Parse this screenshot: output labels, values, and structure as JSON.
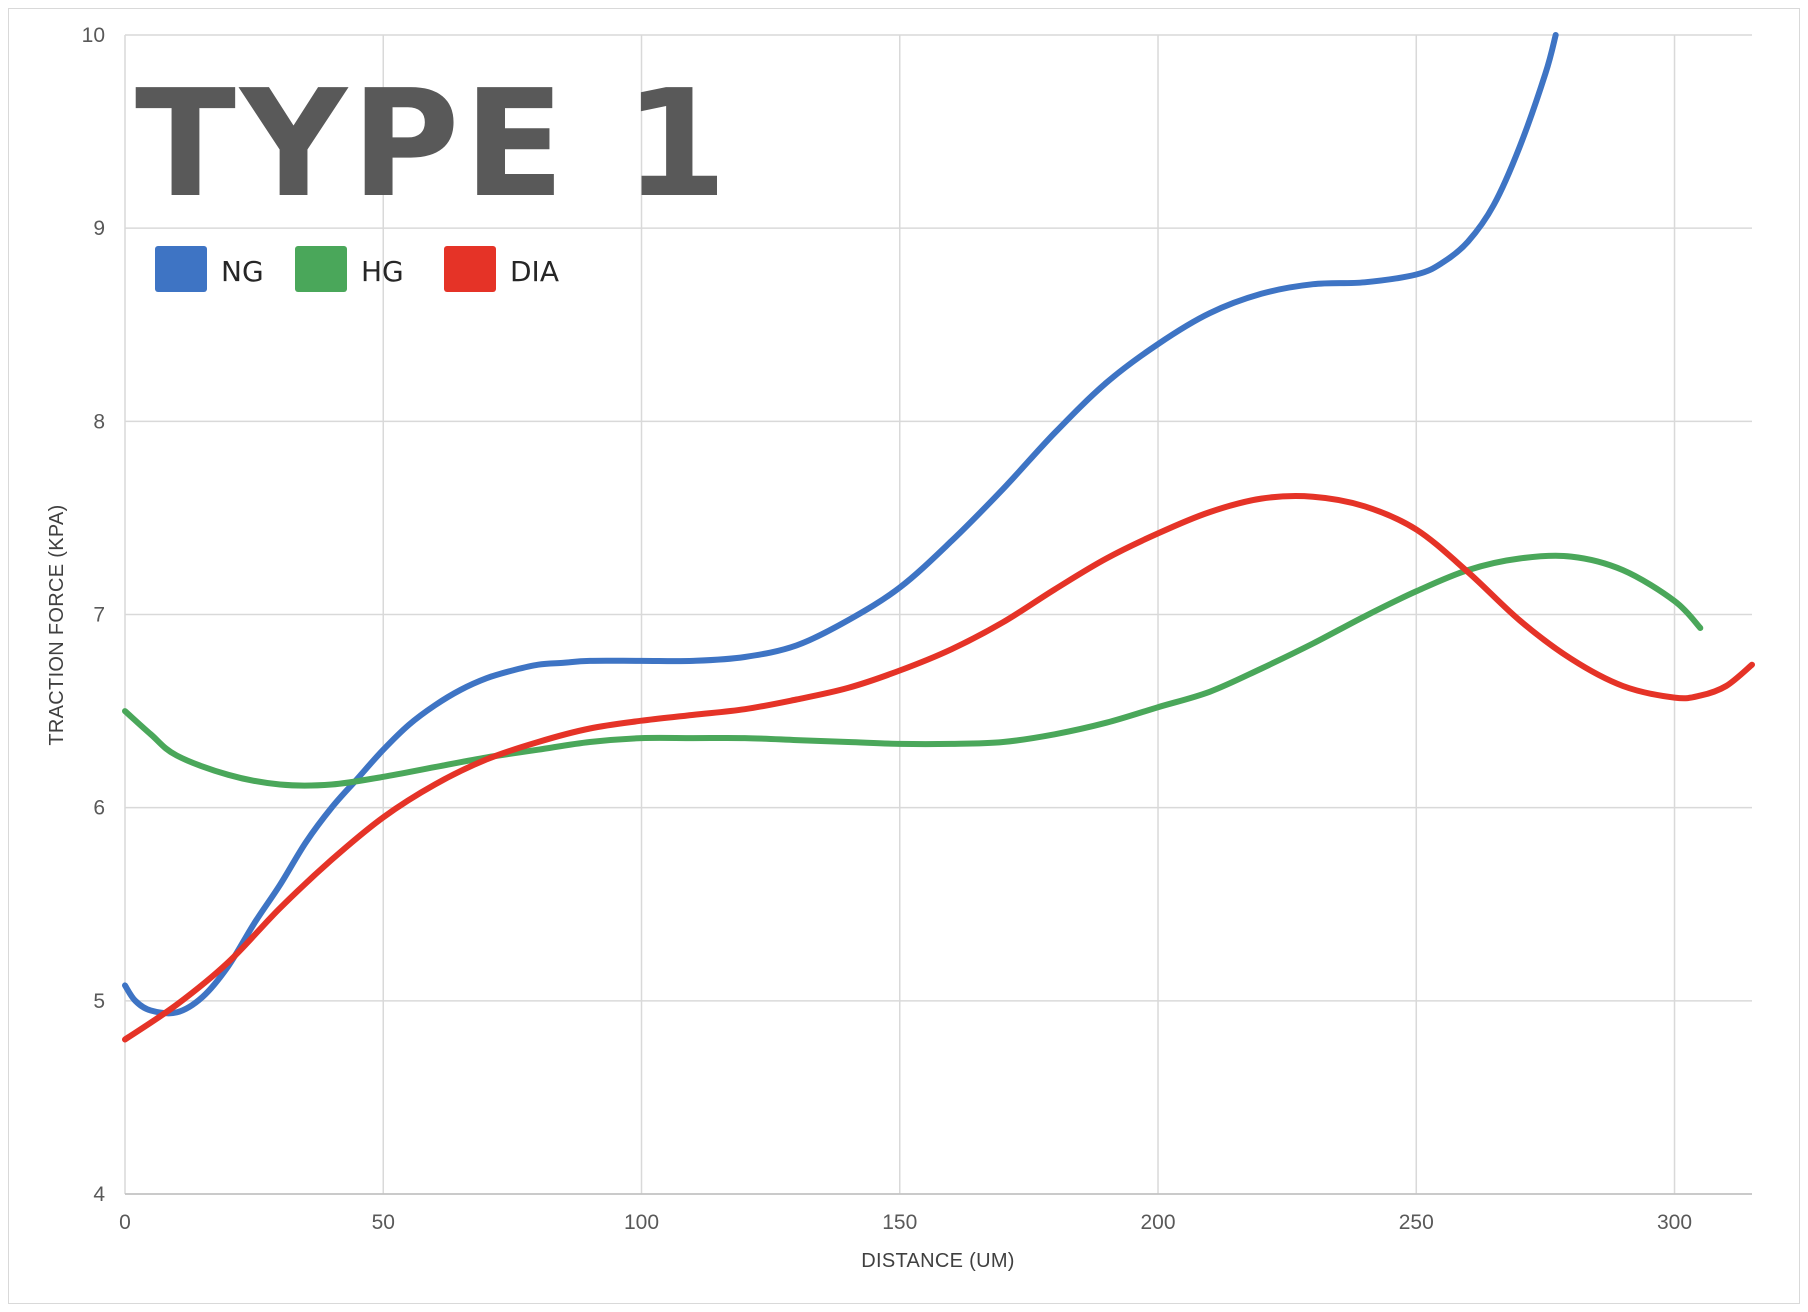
{
  "chart_data": {
    "type": "line",
    "title": "TYPE 1",
    "xlabel": "DISTANCE (UM)",
    "ylabel": "TRACTION FORCE (KPA)",
    "xlim": [
      0,
      315
    ],
    "ylim": [
      4,
      10
    ],
    "xticks": [
      0,
      50,
      100,
      150,
      200,
      250,
      300
    ],
    "yticks": [
      4,
      5,
      6,
      7,
      8,
      9,
      10
    ],
    "grid": true,
    "legend_position": "top-left",
    "series": [
      {
        "name": "NG",
        "color": "#3e74c4",
        "x": [
          0,
          2,
          5,
          10,
          15,
          20,
          25,
          30,
          35,
          40,
          45,
          50,
          55,
          60,
          65,
          70,
          75,
          80,
          85,
          90,
          100,
          110,
          120,
          130,
          140,
          150,
          160,
          170,
          180,
          190,
          200,
          210,
          220,
          230,
          240,
          250,
          255,
          260,
          265,
          270,
          275,
          277
        ],
        "y": [
          5.08,
          5.0,
          4.95,
          4.94,
          5.02,
          5.18,
          5.4,
          5.6,
          5.82,
          6.0,
          6.15,
          6.3,
          6.43,
          6.53,
          6.61,
          6.67,
          6.71,
          6.74,
          6.75,
          6.76,
          6.76,
          6.76,
          6.78,
          6.84,
          6.97,
          7.14,
          7.38,
          7.65,
          7.94,
          8.2,
          8.4,
          8.56,
          8.66,
          8.71,
          8.72,
          8.76,
          8.82,
          8.93,
          9.12,
          9.42,
          9.8,
          10.0
        ]
      },
      {
        "name": "HG",
        "color": "#4aa75a",
        "x": [
          0,
          5,
          10,
          20,
          30,
          40,
          50,
          60,
          70,
          80,
          90,
          100,
          110,
          120,
          130,
          140,
          150,
          160,
          170,
          180,
          190,
          200,
          210,
          220,
          230,
          240,
          250,
          260,
          270,
          280,
          290,
          300,
          305
        ],
        "y": [
          6.5,
          6.38,
          6.27,
          6.17,
          6.12,
          6.12,
          6.16,
          6.21,
          6.26,
          6.3,
          6.34,
          6.36,
          6.36,
          6.36,
          6.35,
          6.34,
          6.33,
          6.33,
          6.34,
          6.38,
          6.44,
          6.52,
          6.6,
          6.72,
          6.85,
          6.99,
          7.12,
          7.23,
          7.29,
          7.3,
          7.23,
          7.07,
          6.93
        ]
      },
      {
        "name": "DIA",
        "color": "#e53327",
        "x": [
          0,
          10,
          20,
          30,
          40,
          50,
          60,
          70,
          80,
          90,
          100,
          110,
          120,
          130,
          140,
          150,
          160,
          170,
          180,
          190,
          200,
          210,
          220,
          230,
          240,
          250,
          260,
          270,
          280,
          290,
          300,
          305,
          310,
          315
        ],
        "y": [
          4.8,
          4.98,
          5.2,
          5.48,
          5.73,
          5.95,
          6.12,
          6.25,
          6.34,
          6.41,
          6.45,
          6.48,
          6.51,
          6.56,
          6.62,
          6.71,
          6.82,
          6.96,
          7.13,
          7.29,
          7.42,
          7.53,
          7.6,
          7.61,
          7.56,
          7.44,
          7.22,
          6.97,
          6.77,
          6.63,
          6.57,
          6.58,
          6.63,
          6.74
        ]
      }
    ]
  }
}
